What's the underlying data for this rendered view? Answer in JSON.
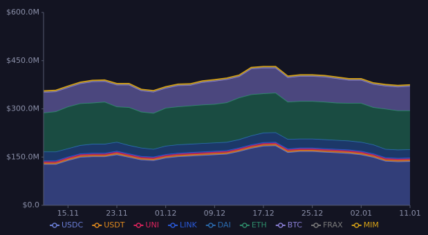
{
  "chart_data": {
    "type": "stacked_area",
    "categories": [
      null,
      null,
      "15.11",
      null,
      null,
      null,
      "23.11",
      null,
      null,
      null,
      "01.12",
      null,
      null,
      null,
      "09.12",
      null,
      null,
      null,
      "17.12",
      null,
      null,
      null,
      "25.12",
      null,
      null,
      null,
      "02.01",
      null,
      null,
      null,
      "11.01"
    ],
    "ylim": [
      0,
      600
    ],
    "yticks": [
      {
        "value": 0,
        "label": "$0.0"
      },
      {
        "value": 150,
        "label": "$150.0M"
      },
      {
        "value": 300,
        "label": "$300.0M"
      },
      {
        "value": 450,
        "label": "$450.0M"
      },
      {
        "value": 600,
        "label": "$600.0M"
      }
    ],
    "grid": false,
    "series": [
      {
        "name": "USDC",
        "color": "#6b7fd7",
        "fill": "#34407e",
        "values": [
          128,
          128,
          140,
          150,
          152,
          152,
          158,
          150,
          142,
          140,
          148,
          152,
          154,
          156,
          158,
          160,
          168,
          178,
          185,
          186,
          165,
          168,
          168,
          166,
          164,
          162,
          158,
          150,
          138,
          136,
          137
        ]
      },
      {
        "name": "USDT",
        "color": "#e08a1e",
        "fill": "#b8651a",
        "values": [
          4,
          4,
          4,
          4,
          4,
          4,
          4,
          4,
          4,
          4,
          4,
          4,
          4,
          4,
          4,
          4,
          4,
          4,
          4,
          4,
          4,
          4,
          4,
          4,
          4,
          4,
          4,
          4,
          4,
          4,
          4
        ]
      },
      {
        "name": "UNI",
        "color": "#e0245e",
        "fill": "#a3234f",
        "values": [
          4,
          4,
          4,
          4,
          4,
          4,
          4,
          4,
          4,
          4,
          4,
          4,
          4,
          4,
          4,
          4,
          4,
          4,
          4,
          4,
          4,
          4,
          4,
          4,
          4,
          4,
          4,
          4,
          4,
          4,
          4
        ]
      },
      {
        "name": "LINK",
        "color": "#2a5ada",
        "fill": "#22408f",
        "values": [
          3,
          3,
          3,
          3,
          3,
          3,
          3,
          3,
          3,
          3,
          3,
          3,
          3,
          3,
          3,
          3,
          3,
          3,
          3,
          3,
          3,
          3,
          3,
          3,
          3,
          3,
          3,
          3,
          3,
          3,
          3
        ]
      },
      {
        "name": "DAI",
        "color": "#2b6cb0",
        "fill": "#1c3a6e",
        "values": [
          28,
          28,
          26,
          26,
          28,
          28,
          28,
          26,
          26,
          24,
          26,
          26,
          26,
          26,
          26,
          26,
          26,
          28,
          30,
          30,
          30,
          28,
          28,
          28,
          28,
          28,
          28,
          28,
          26,
          26,
          26
        ]
      },
      {
        "name": "ETH",
        "color": "#2e8b6a",
        "fill": "#1a4f45",
        "values": [
          121,
          125,
          130,
          130,
          128,
          131,
          110,
          118,
          112,
          112,
          118,
          118,
          119,
          120,
          120,
          123,
          130,
          128,
          122,
          123,
          116,
          117,
          117,
          117,
          116,
          117,
          121,
          116,
          125,
          122,
          121
        ]
      },
      {
        "name": "BTC",
        "color": "#8a7fd6",
        "fill": "#4e4a84",
        "values": [
          64,
          62,
          60,
          62,
          66,
          64,
          68,
          70,
          66,
          66,
          62,
          66,
          64,
          70,
          72,
          72,
          66,
          80,
          80,
          78,
          76,
          78,
          78,
          78,
          76,
          72,
          72,
          72,
          72,
          74,
          76
        ]
      },
      {
        "name": "FRAX",
        "color": "#7a7a7a",
        "fill": "#5a5a5a",
        "values": [
          2,
          2,
          2,
          2,
          2,
          2,
          2,
          2,
          2,
          2,
          2,
          2,
          2,
          2,
          2,
          2,
          2,
          2,
          2,
          2,
          2,
          2,
          2,
          2,
          2,
          2,
          2,
          2,
          2,
          2,
          2
        ]
      },
      {
        "name": "MIM",
        "color": "#d4a017",
        "fill": "#b88a1a",
        "values": [
          2,
          2,
          2,
          2,
          2,
          2,
          2,
          2,
          2,
          2,
          2,
          2,
          2,
          2,
          2,
          2,
          2,
          2,
          2,
          2,
          2,
          2,
          2,
          2,
          2,
          2,
          2,
          2,
          2,
          2,
          2
        ]
      }
    ]
  }
}
